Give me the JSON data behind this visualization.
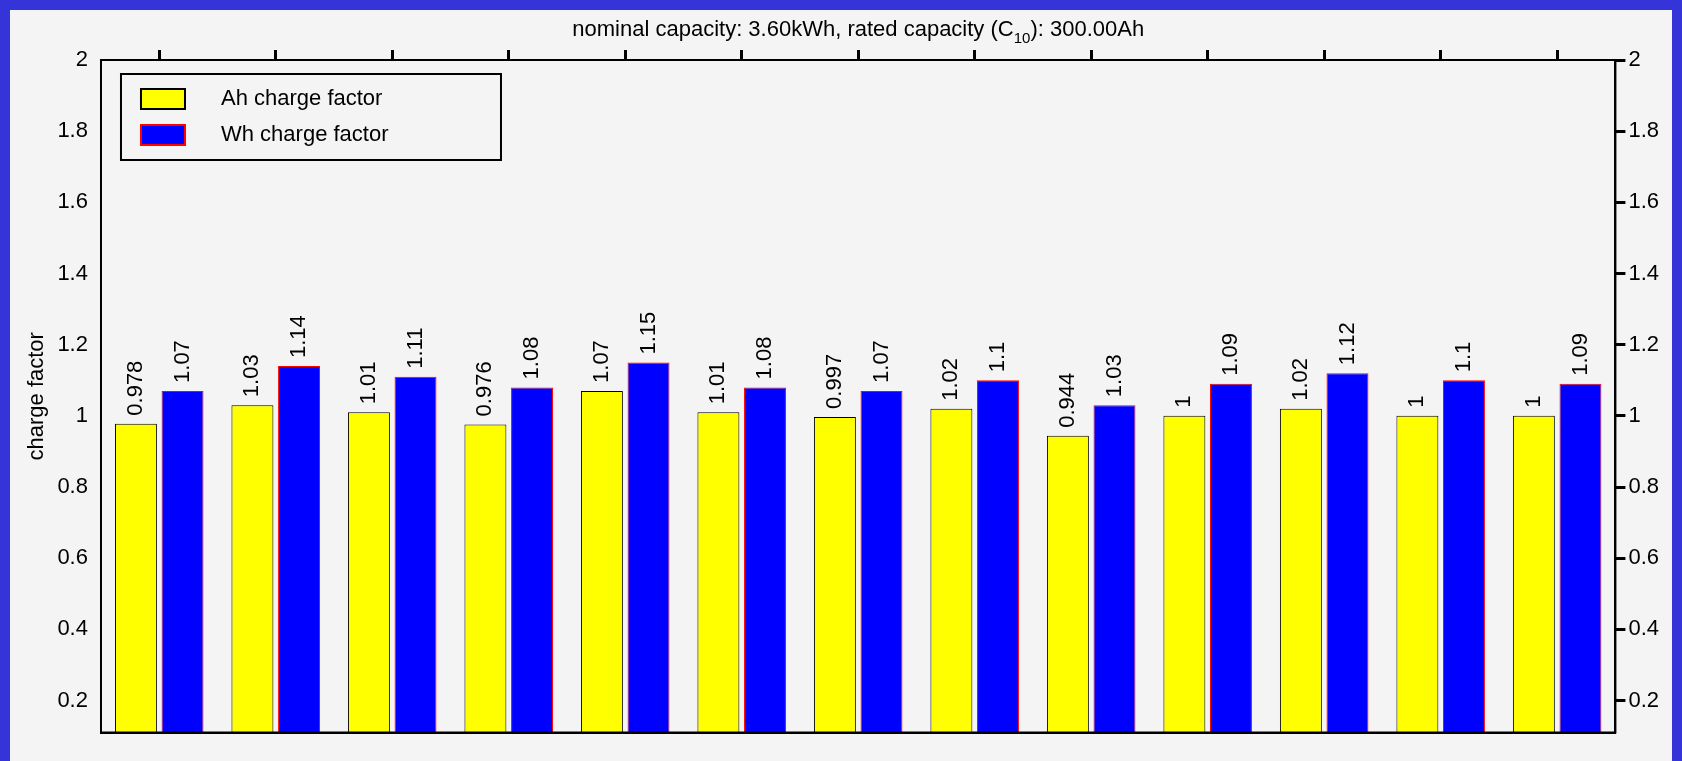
{
  "chart_data": {
    "type": "bar",
    "title": "nominal capacity: 3.60kWh, rated capacity (C$_{10}$): 300.00Ah",
    "ylabel": "charge factor",
    "categories": [
      null,
      null,
      null,
      null,
      null,
      null,
      null,
      null,
      null,
      null,
      null,
      null,
      null
    ],
    "series": [
      {
        "name": "Ah charge factor",
        "color": "#ffff00",
        "values": [
          0.978,
          1.03,
          1.01,
          0.976,
          1.07,
          1.01,
          0.997,
          1.02,
          0.944,
          1,
          1.02,
          1,
          1
        ]
      },
      {
        "name": "Wh charge factor",
        "color": "#0000ff",
        "values": [
          1.07,
          1.14,
          1.11,
          1.08,
          1.15,
          1.08,
          1.07,
          1.1,
          1.03,
          1.09,
          1.12,
          1.1,
          1.09
        ]
      }
    ],
    "ylim": [
      0.11,
      2
    ],
    "yticks": [
      {
        "value": 0.2,
        "label": "0.2"
      },
      {
        "value": 0.4,
        "label": "0.4"
      },
      {
        "value": 0.6,
        "label": "0.6"
      },
      {
        "value": 0.8,
        "label": "0.8"
      },
      1,
      {
        "value": 1.2,
        "label": "1.2"
      },
      {
        "value": 1.4,
        "label": "1.4"
      },
      {
        "value": 1.6,
        "label": "1.6"
      },
      {
        "value": 1.8,
        "label": "1.8"
      },
      2
    ],
    "y2lim": [
      0.11,
      2
    ],
    "y2ticks": [
      {
        "value": 0.2,
        "label": "0.2"
      },
      {
        "value": 0.4,
        "label": "0.4"
      },
      {
        "value": 0.6,
        "label": "0.6"
      },
      {
        "value": 0.8,
        "label": "0.8"
      },
      1,
      {
        "value": 1.2,
        "label": "1.2"
      },
      {
        "value": 1.4,
        "label": "1.4"
      },
      {
        "value": 1.6,
        "label": "1.6"
      },
      {
        "value": 1.8,
        "label": "1.8"
      },
      2
    ],
    "data_labels": true,
    "legend": "top left",
    "grid": false
  }
}
